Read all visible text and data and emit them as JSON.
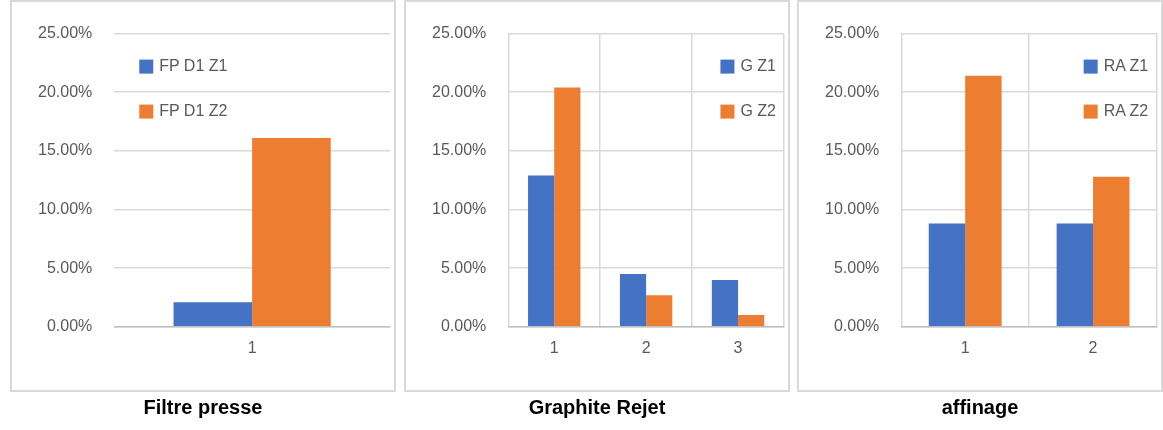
{
  "chart_data": [
    {
      "type": "bar",
      "title": "Filtre presse",
      "categories": [
        "1"
      ],
      "series": [
        {
          "name": "FP D1 Z1",
          "color": "#4472c4",
          "values": [
            2.1
          ]
        },
        {
          "name": "FP D1 Z2",
          "color": "#ed7d31",
          "values": [
            16.1
          ]
        }
      ],
      "ylim": [
        0,
        25
      ],
      "yticks": [
        {
          "value": 0,
          "label": "0.00%"
        },
        {
          "value": 5,
          "label": "5.00%"
        },
        {
          "value": 10,
          "label": "10.00%"
        },
        {
          "value": 15,
          "label": "15.00%"
        },
        {
          "value": 20,
          "label": "20.00%"
        },
        {
          "value": 25,
          "label": "25.00%"
        }
      ],
      "grid": "y",
      "legend": "top left"
    },
    {
      "type": "bar",
      "title": "Graphite Rejet",
      "categories": [
        "1",
        "2",
        "3"
      ],
      "series": [
        {
          "name": "G Z1",
          "color": "#4472c4",
          "values": [
            12.9,
            4.5,
            4.0
          ]
        },
        {
          "name": "G Z2",
          "color": "#ed7d31",
          "values": [
            20.4,
            2.7,
            1.0
          ]
        }
      ],
      "ylim": [
        0,
        25
      ],
      "yticks": [
        {
          "value": 0,
          "label": "0.00%"
        },
        {
          "value": 5,
          "label": "5.00%"
        },
        {
          "value": 10,
          "label": "10.00%"
        },
        {
          "value": 15,
          "label": "15.00%"
        },
        {
          "value": 20,
          "label": "20.00%"
        },
        {
          "value": 25,
          "label": "25.00%"
        }
      ],
      "grid": true,
      "legend": "top right"
    },
    {
      "type": "bar",
      "title": "affinage",
      "categories": [
        "1",
        "2"
      ],
      "series": [
        {
          "name": "RA Z1",
          "color": "#4472c4",
          "values": [
            8.8,
            8.8
          ]
        },
        {
          "name": "RA Z2",
          "color": "#ed7d31",
          "values": [
            21.4,
            12.8
          ]
        }
      ],
      "ylim": [
        0,
        25
      ],
      "yticks": [
        {
          "value": 0,
          "label": "0.00%"
        },
        {
          "value": 5,
          "label": "5.00%"
        },
        {
          "value": 10,
          "label": "10.00%"
        },
        {
          "value": 15,
          "label": "15.00%"
        },
        {
          "value": 20,
          "label": "20.00%"
        },
        {
          "value": 25,
          "label": "25.00%"
        }
      ],
      "grid": true,
      "legend": "top right"
    }
  ]
}
